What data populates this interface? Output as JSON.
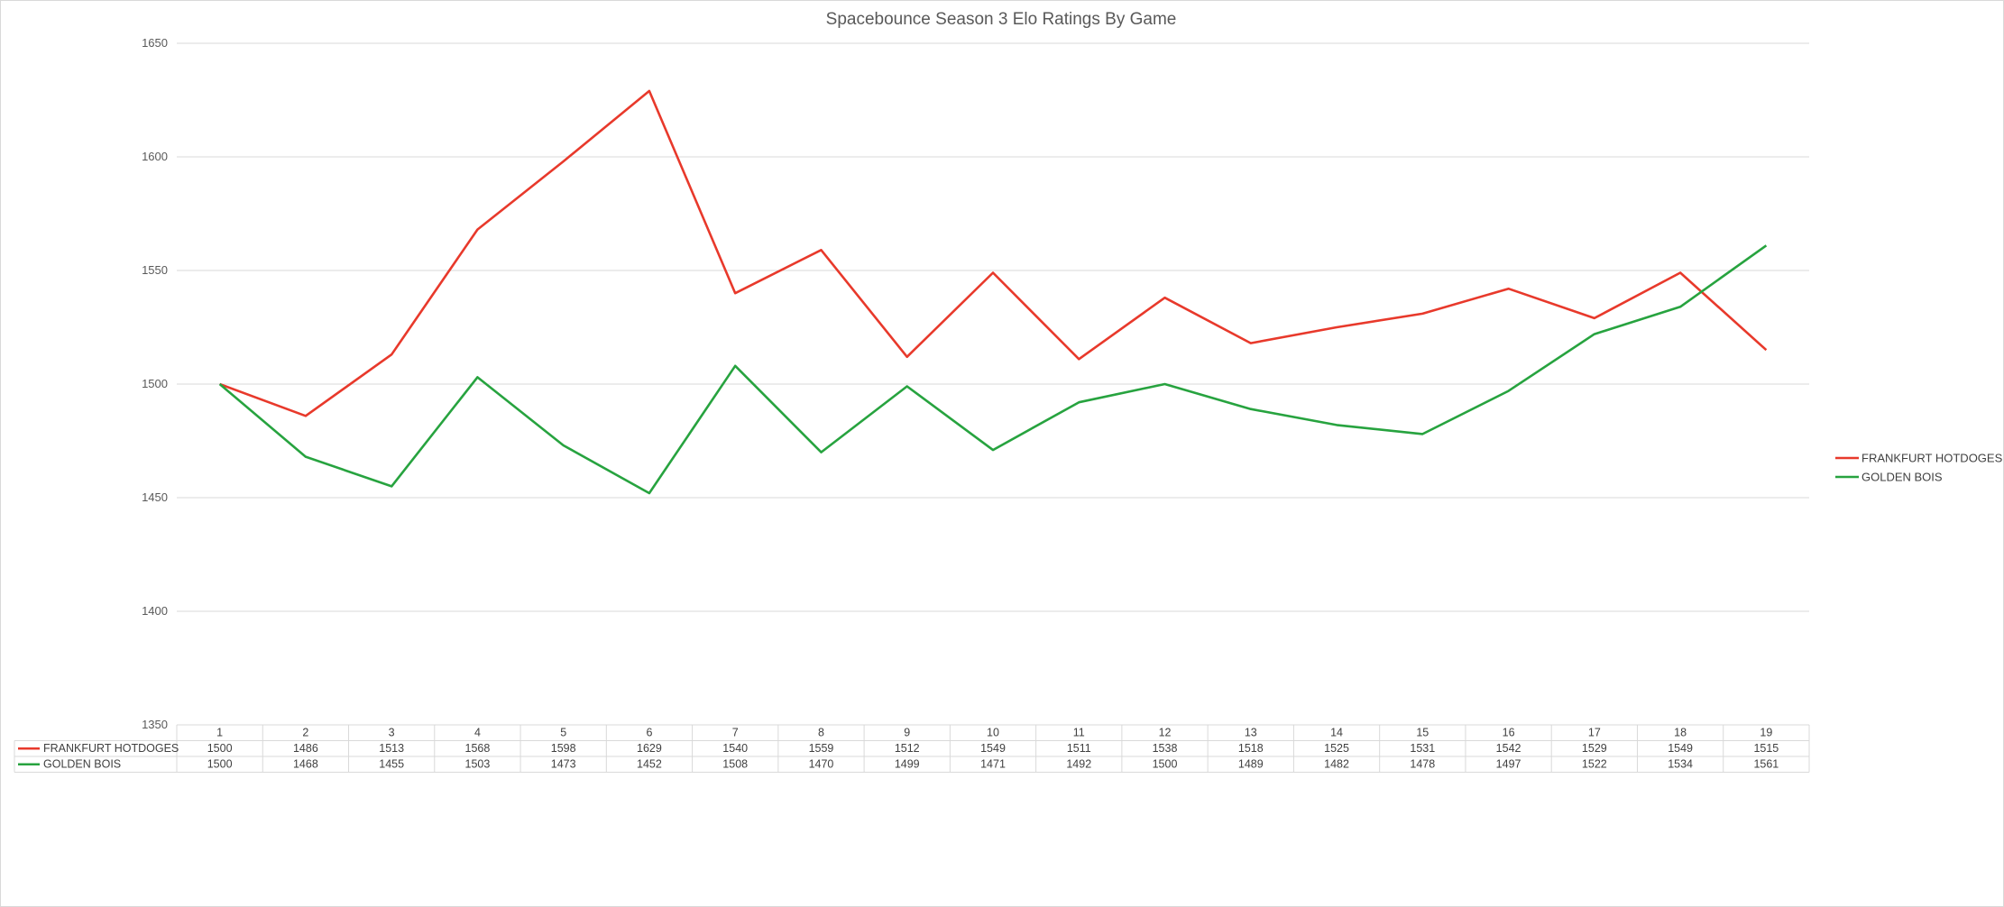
{
  "chart_data": {
    "type": "line",
    "title": "Spacebounce Season 3 Elo Ratings By Game",
    "xlabel": "",
    "ylabel": "",
    "ylim": [
      1350,
      1650
    ],
    "yticks": [
      1350,
      1400,
      1450,
      1500,
      1550,
      1600,
      1650
    ],
    "grid": true,
    "legend_position": "right",
    "categories": [
      "1",
      "2",
      "3",
      "4",
      "5",
      "6",
      "7",
      "8",
      "9",
      "10",
      "11",
      "12",
      "13",
      "14",
      "15",
      "16",
      "17",
      "18",
      "19"
    ],
    "series": [
      {
        "name": "FRANKFURT HOTDOGES",
        "color": "#e8392b",
        "values": [
          1500,
          1486,
          1513,
          1568,
          1598,
          1629,
          1540,
          1559,
          1512,
          1549,
          1511,
          1538,
          1518,
          1525,
          1531,
          1542,
          1529,
          1549,
          1515
        ]
      },
      {
        "name": "GOLDEN BOIS",
        "color": "#27a33f",
        "values": [
          1500,
          1468,
          1455,
          1503,
          1473,
          1452,
          1508,
          1470,
          1499,
          1471,
          1492,
          1500,
          1489,
          1482,
          1478,
          1497,
          1522,
          1534,
          1561
        ]
      }
    ]
  }
}
